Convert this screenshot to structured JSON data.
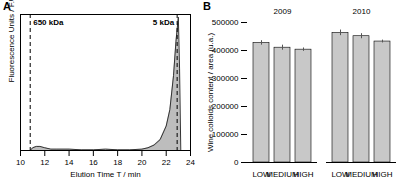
{
  "chart_data": [
    {
      "type": "area",
      "title": "A",
      "x_label": "Elution Time T / min",
      "y_label": "Fluorescence Units / F.U.",
      "x": [
        10.8,
        11,
        11.3,
        11.6,
        12,
        12.5,
        13,
        14,
        15,
        16,
        17,
        18,
        19,
        20,
        20.5,
        21,
        21.5,
        22,
        22.3,
        22.6,
        22.8,
        23,
        23.1,
        23.2
      ],
      "values": [
        0,
        2,
        3,
        3,
        2,
        1,
        1,
        1,
        0.5,
        0.5,
        1,
        0.5,
        0.5,
        1,
        2,
        4,
        8,
        18,
        30,
        55,
        80,
        98,
        60,
        0
      ],
      "color": "#bdbdbd",
      "xlim": [
        10,
        24
      ],
      "xticks": [
        10,
        12,
        14,
        16,
        18,
        20,
        22,
        24
      ],
      "ylim": [
        0,
        100
      ],
      "tick_labels": "x",
      "markers": [
        {
          "label": "650 kDa",
          "x": 10.8
        },
        {
          "label": "5 kDa",
          "x": 22.9
        }
      ]
    },
    {
      "type": "bar",
      "title": "B",
      "y_label": "Wine colloids content / area (u.a.)",
      "categories": [
        "LOW",
        "MEDIUM",
        "HIGH"
      ],
      "series": [
        {
          "name": "2009",
          "color": "#c8c8c8",
          "values": [
            427000,
            410000,
            403000
          ],
          "errors": [
            8000,
            9000,
            6000
          ]
        },
        {
          "name": "2010",
          "color": "#c8c8c8",
          "values": [
            463000,
            451000,
            432000
          ],
          "errors": [
            10000,
            9000,
            5000
          ]
        }
      ],
      "ylim": [
        0,
        500000
      ],
      "yticks": [
        0,
        100000,
        200000,
        300000,
        400000,
        500000
      ],
      "grid": false
    }
  ]
}
